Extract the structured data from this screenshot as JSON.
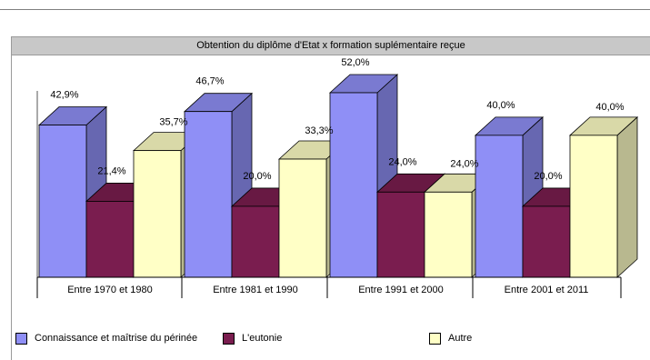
{
  "chart_data": {
    "type": "bar",
    "title": "Obtention du diplôme d'Etat x formation  suplémentaire reçue",
    "categories": [
      "Entre 1970 et 1980",
      "Entre 1981 et 1990",
      "Entre 1991 et 2000",
      "Entre 2001 et 2011"
    ],
    "series": [
      {
        "name": "Connaissance et maîtrise du périnée",
        "values": [
          42.9,
          46.7,
          52.0,
          40.0
        ],
        "labels": [
          "42,9%",
          "46,7%",
          "52,0%",
          "40,0%"
        ],
        "color": "#8f8ff6"
      },
      {
        "name": "L'eutonie",
        "values": [
          21.4,
          20.0,
          24.0,
          20.0
        ],
        "labels": [
          "21,4%",
          "20,0%",
          "24,0%",
          "20,0%"
        ],
        "color": "#7a1d4f"
      },
      {
        "name": "Autre",
        "values": [
          35.7,
          33.3,
          24.0,
          40.0
        ],
        "labels": [
          "35,7%",
          "33,3%",
          "24,0%",
          "40,0%"
        ],
        "color": "#ffffc6"
      }
    ],
    "ylim": [
      0,
      52
    ],
    "grid": false,
    "legend_position": "bottom"
  }
}
